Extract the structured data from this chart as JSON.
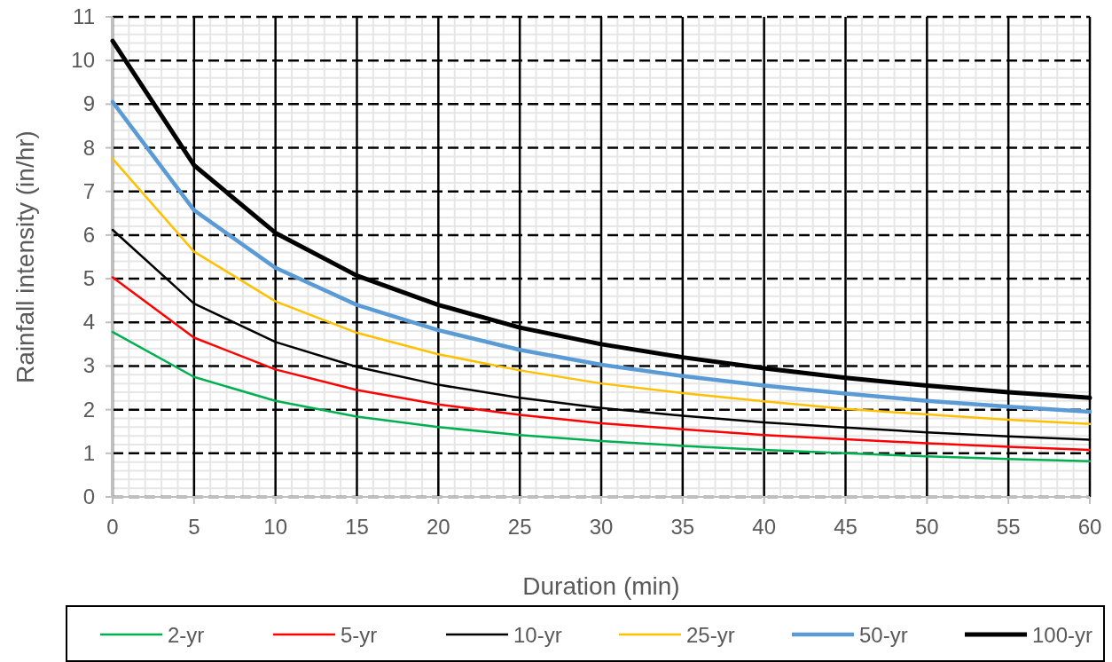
{
  "chart_data": {
    "type": "line",
    "xlabel": "Duration (min)",
    "ylabel": "Rainfall intensity (in/hr)",
    "x": [
      0,
      5,
      10,
      15,
      20,
      25,
      30,
      35,
      40,
      45,
      50,
      55,
      60
    ],
    "series": [
      {
        "name": "2-yr",
        "color": "#00b050",
        "values": [
          3.78,
          2.75,
          2.2,
          1.84,
          1.6,
          1.42,
          1.28,
          1.17,
          1.08,
          1.0,
          0.93,
          0.87,
          0.82
        ]
      },
      {
        "name": "5-yr",
        "color": "#ff0000",
        "values": [
          5.03,
          3.65,
          2.92,
          2.45,
          2.12,
          1.88,
          1.69,
          1.55,
          1.42,
          1.32,
          1.23,
          1.15,
          1.08
        ]
      },
      {
        "name": "10-yr",
        "color": "#000000",
        "values": [
          6.12,
          4.43,
          3.55,
          2.98,
          2.57,
          2.27,
          2.04,
          1.86,
          1.71,
          1.59,
          1.48,
          1.39,
          1.31
        ]
      },
      {
        "name": "25-yr",
        "color": "#ffc000",
        "values": [
          7.75,
          5.62,
          4.48,
          3.76,
          3.27,
          2.9,
          2.6,
          2.38,
          2.19,
          2.02,
          1.89,
          1.77,
          1.67
        ]
      },
      {
        "name": "50-yr",
        "color": "#5b9bd5",
        "values": [
          9.05,
          6.57,
          5.25,
          4.4,
          3.82,
          3.37,
          3.03,
          2.77,
          2.55,
          2.37,
          2.2,
          2.07,
          1.95
        ]
      },
      {
        "name": "100-yr",
        "color": "#000000",
        "values": [
          10.45,
          7.6,
          6.05,
          5.07,
          4.4,
          3.88,
          3.5,
          3.2,
          2.95,
          2.73,
          2.55,
          2.4,
          2.27
        ]
      }
    ],
    "xlim": [
      0,
      60
    ],
    "xticks": [
      0,
      5,
      10,
      15,
      20,
      25,
      30,
      35,
      40,
      45,
      50,
      55,
      60
    ],
    "ylim": [
      0,
      11
    ],
    "yticks": [
      0,
      1,
      2,
      3,
      4,
      5,
      6,
      7,
      8,
      9,
      10,
      11
    ],
    "grid": true,
    "legend": "bottom",
    "marker": "none",
    "line_style": "solid"
  }
}
